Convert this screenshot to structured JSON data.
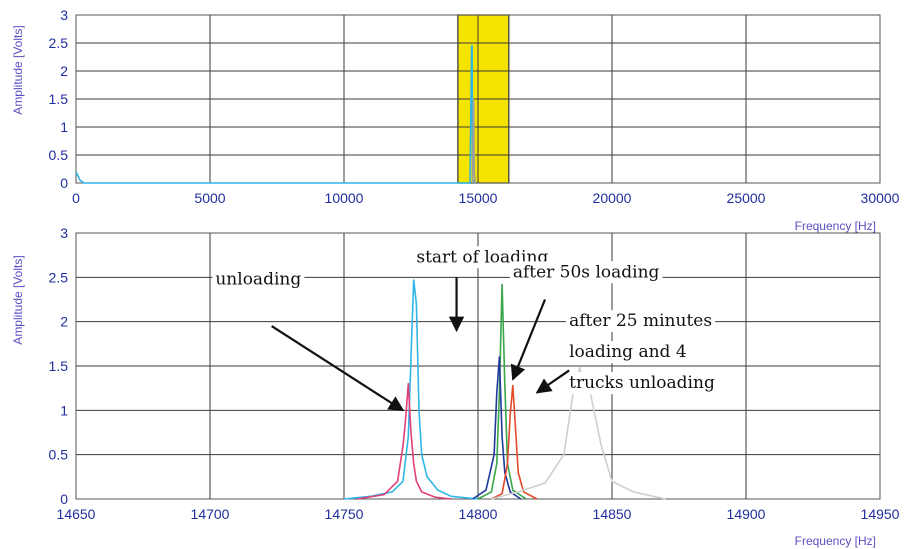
{
  "chart_data": [
    {
      "type": "line",
      "title": "",
      "xlabel": "Frequency [Hz]",
      "ylabel": "Amplitude [Volts]",
      "xlim": [
        0,
        30000
      ],
      "ylim": [
        0,
        3
      ],
      "xticks": [
        0,
        5000,
        10000,
        15000,
        20000,
        25000,
        30000
      ],
      "yticks": [
        0,
        0.5,
        1,
        1.5,
        2,
        2.5,
        3
      ],
      "grid": true,
      "highlight_band": {
        "x_from": 14250,
        "x_to": 16150,
        "color": "#f5e400"
      },
      "series": [
        {
          "color": "#2fb6e6",
          "x": [
            0,
            150,
            300,
            14700,
            14760,
            14780,
            14800,
            14900
          ],
          "y": [
            0.2,
            0.05,
            0,
            0,
            2.45,
            2.45,
            0.05,
            0
          ]
        },
        {
          "color": "#9e9e9e",
          "x": [
            14800,
            14830,
            14845,
            14860,
            14900
          ],
          "y": [
            0,
            1.5,
            1.4,
            0.2,
            0
          ]
        }
      ]
    },
    {
      "type": "line",
      "title": "",
      "xlabel": "Frequency [Hz]",
      "ylabel": "Amplitude [Volts]",
      "xlim": [
        14650,
        14950
      ],
      "ylim": [
        0,
        3
      ],
      "xticks": [
        14650,
        14700,
        14750,
        14800,
        14850,
        14900,
        14950
      ],
      "yticks": [
        0,
        0.5,
        1,
        1.5,
        2,
        2.5,
        3
      ],
      "grid": true,
      "series": [
        {
          "color": "#2fb6e6",
          "x": [
            14750,
            14760,
            14768,
            14772,
            14774,
            14775,
            14776,
            14777,
            14778,
            14779,
            14781,
            14785,
            14790,
            14800
          ],
          "y": [
            0,
            0.03,
            0.08,
            0.2,
            0.7,
            1.6,
            2.47,
            2.2,
            1.0,
            0.5,
            0.25,
            0.1,
            0.03,
            0
          ]
        },
        {
          "color": "#e0407a",
          "x": [
            14755,
            14765,
            14770,
            14772,
            14773,
            14774,
            14775,
            14776,
            14777,
            14779,
            14784,
            14790
          ],
          "y": [
            0,
            0.05,
            0.2,
            0.6,
            0.9,
            1.3,
            0.75,
            0.4,
            0.2,
            0.08,
            0.02,
            0
          ]
        },
        {
          "color": "#3aa64a",
          "x": [
            14800,
            14805,
            14807,
            14808,
            14809,
            14810,
            14811,
            14813,
            14818
          ],
          "y": [
            0,
            0.08,
            0.4,
            1.2,
            2.42,
            1.3,
            0.4,
            0.1,
            0
          ]
        },
        {
          "color": "#1f3a9a",
          "x": [
            14798,
            14803,
            14806,
            14807,
            14808,
            14809,
            14810,
            14812,
            14816
          ],
          "y": [
            0,
            0.1,
            0.5,
            1.2,
            1.6,
            0.7,
            0.3,
            0.08,
            0
          ]
        },
        {
          "color": "#e24a2a",
          "x": [
            14805,
            14809,
            14811,
            14812,
            14813,
            14814,
            14815,
            14817,
            14822
          ],
          "y": [
            0,
            0.06,
            0.4,
            0.95,
            1.28,
            0.8,
            0.3,
            0.08,
            0
          ]
        },
        {
          "color": "#cfcfcf",
          "x": [
            14805,
            14815,
            14825,
            14832,
            14836,
            14838,
            14840,
            14842,
            14846,
            14850,
            14858,
            14870
          ],
          "y": [
            0,
            0.08,
            0.18,
            0.5,
            1.3,
            1.48,
            1.25,
            1.18,
            0.6,
            0.2,
            0.08,
            0
          ]
        }
      ],
      "annotations": [
        {
          "text": "unloading",
          "x": 14702,
          "y": 2.42
        },
        {
          "text": "start of loading",
          "x": 14777,
          "y": 2.67
        },
        {
          "text": "after 50s loading",
          "x": 14813,
          "y": 2.5
        },
        {
          "text": "after 25 minutes",
          "x": 14834,
          "y": 1.95
        },
        {
          "text": "loading and 4",
          "x": 14834,
          "y": 1.6
        },
        {
          "text": "trucks unloading",
          "x": 14834,
          "y": 1.25
        }
      ]
    }
  ]
}
